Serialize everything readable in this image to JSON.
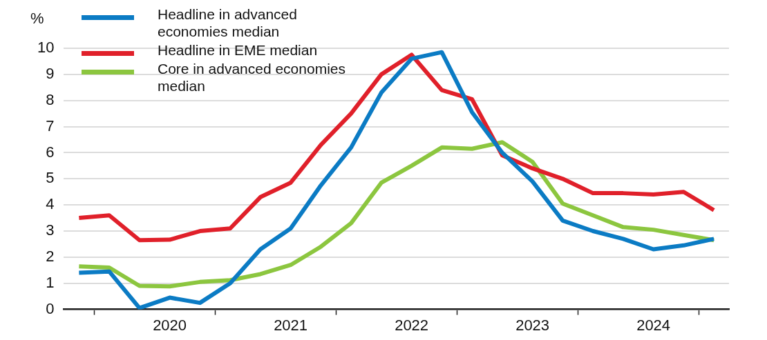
{
  "chart_data": {
    "type": "line",
    "ylabel": "%",
    "x": [
      2019.75,
      2020,
      2020.25,
      2020.5,
      2020.75,
      2021,
      2021.25,
      2021.5,
      2021.75,
      2022,
      2022.25,
      2022.5,
      2022.75,
      2023,
      2023.25,
      2023.5,
      2023.75,
      2024,
      2024.25,
      2024.5,
      2024.75,
      2025
    ],
    "series": [
      {
        "name": "Headline in advanced economies median",
        "color": "#0b7bc4",
        "values": [
          1.4,
          1.45,
          0.05,
          0.45,
          0.25,
          1.0,
          2.3,
          3.1,
          4.75,
          6.2,
          8.3,
          9.6,
          9.85,
          7.55,
          6.0,
          4.9,
          3.4,
          3.0,
          2.7,
          2.3,
          2.45,
          2.7
        ]
      },
      {
        "name": "Headline in EME median",
        "color": "#e0202a",
        "values": [
          3.5,
          3.6,
          2.65,
          2.67,
          3.0,
          3.1,
          4.3,
          4.85,
          6.3,
          7.5,
          9.0,
          9.75,
          8.4,
          8.05,
          5.9,
          5.4,
          5.0,
          4.45,
          4.45,
          4.4,
          4.5,
          3.8
        ]
      },
      {
        "name": "Core in advanced economies median",
        "color": "#8cc63f",
        "values": [
          1.65,
          1.6,
          0.9,
          0.88,
          1.05,
          1.12,
          1.35,
          1.7,
          2.4,
          3.3,
          4.85,
          5.5,
          6.2,
          6.15,
          6.4,
          5.65,
          4.05,
          3.6,
          3.15,
          3.05,
          2.85,
          2.65
        ]
      }
    ],
    "xlim": [
      2019.625,
      2025.125
    ],
    "xticks": [
      {
        "value": 2019.875,
        "label": null
      },
      {
        "value": 2020.5,
        "label": "2020"
      },
      {
        "value": 2020.875,
        "label": null
      },
      {
        "value": 2021.5,
        "label": "2021"
      },
      {
        "value": 2021.875,
        "label": null
      },
      {
        "value": 2022.5,
        "label": "2022"
      },
      {
        "value": 2022.875,
        "label": null
      },
      {
        "value": 2023.5,
        "label": "2023"
      },
      {
        "value": 2023.875,
        "label": null
      },
      {
        "value": 2024.5,
        "label": "2024"
      },
      {
        "value": 2024.875,
        "label": null
      }
    ],
    "ylim": [
      0,
      10
    ],
    "yticks": [
      0,
      1,
      2,
      3,
      4,
      5,
      6,
      7,
      8,
      9,
      10
    ],
    "grid": "y",
    "legend": "top left",
    "marker": "none",
    "line_style": "solid"
  }
}
